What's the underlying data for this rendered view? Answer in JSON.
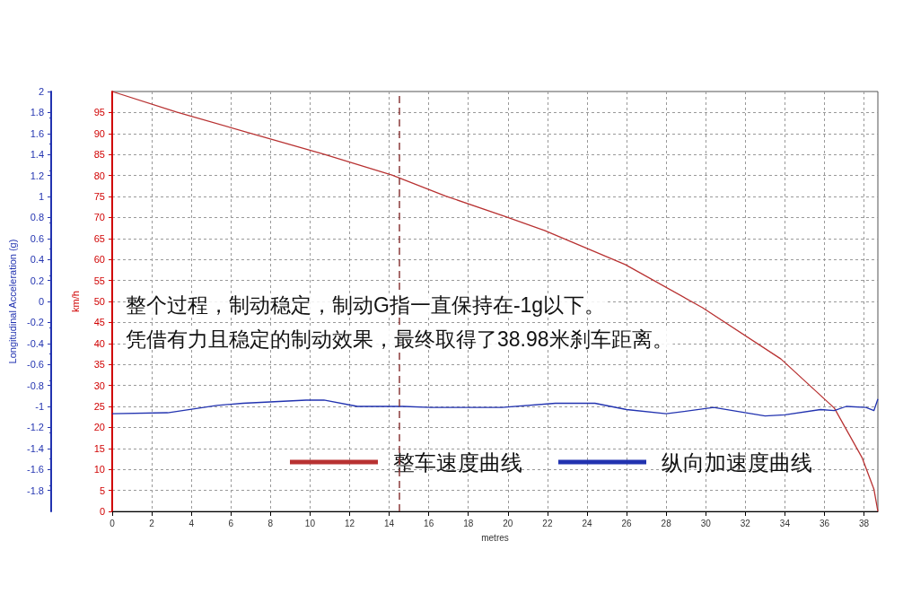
{
  "chart_data": {
    "type": "line",
    "xlabel": "metres",
    "ylabel": "km/h",
    "y2label": "Longitudinal Acceleration (g)",
    "xlim": [
      0,
      38.7
    ],
    "xticks": [
      0,
      2,
      4,
      6,
      8,
      10,
      12,
      14,
      16,
      18,
      20,
      22,
      24,
      26,
      28,
      30,
      32,
      34,
      36,
      38
    ],
    "ylim": [
      0,
      100
    ],
    "yticks": [
      0,
      5,
      10,
      15,
      20,
      25,
      30,
      35,
      40,
      45,
      50,
      55,
      60,
      65,
      70,
      75,
      80,
      85,
      90,
      95
    ],
    "y2lim": [
      -2,
      2
    ],
    "y2ticks": [
      -1.8,
      -1.6,
      -1.4,
      -1.2,
      -1,
      -0.8,
      -0.6,
      -0.4,
      -0.2,
      0,
      0.2,
      0.4,
      0.6,
      0.8,
      1,
      1.2,
      1.4,
      1.6,
      1.8,
      2
    ],
    "grid": true,
    "legend": "bottom",
    "marker": "none",
    "line_style": "solid",
    "series": [
      {
        "name": "整车速度曲线",
        "color": "#b83232",
        "x": [
          0,
          3.25,
          6.88,
          10.66,
          14.14,
          16.86,
          19.87,
          21.85,
          25.93,
          29.84,
          33.8,
          36.5,
          37.9,
          38.5,
          38.7
        ],
        "values": [
          100,
          95.1,
          90.2,
          85.1,
          80.1,
          75.1,
          70.2,
          66.9,
          58.8,
          48.5,
          36.3,
          24.6,
          12.8,
          5.3,
          0
        ]
      },
      {
        "name": "纵向加速度曲线",
        "color": "#2233b0",
        "axis": "y2",
        "x": [
          0,
          2.8,
          5.3,
          6.6,
          9.8,
          10.7,
          12.4,
          14.7,
          16.1,
          19.7,
          22.4,
          24.4,
          26.0,
          28.0,
          30.4,
          33.0,
          34.0,
          35.8,
          36.5,
          37.1,
          38.1,
          38.5,
          38.7
        ],
        "values": [
          -1.07,
          -1.06,
          -0.99,
          -0.97,
          -0.94,
          -0.94,
          -1.0,
          -1.0,
          -1.01,
          -1.01,
          -0.97,
          -0.97,
          -1.03,
          -1.07,
          -1.01,
          -1.09,
          -1.08,
          -1.03,
          -1.04,
          -1.0,
          -1.01,
          -1.04,
          -0.93
        ]
      }
    ],
    "ref_lines": [
      {
        "axis": "x",
        "value": 14.5,
        "color": "#8b3a3a",
        "line_style": "dashed"
      }
    ],
    "annotations": [
      "整个过程，制动稳定，制动G指一直保持在-1g以下。",
      "凭借有力且稳定的制动效果，最终取得了38.98米刹车距离。"
    ]
  }
}
